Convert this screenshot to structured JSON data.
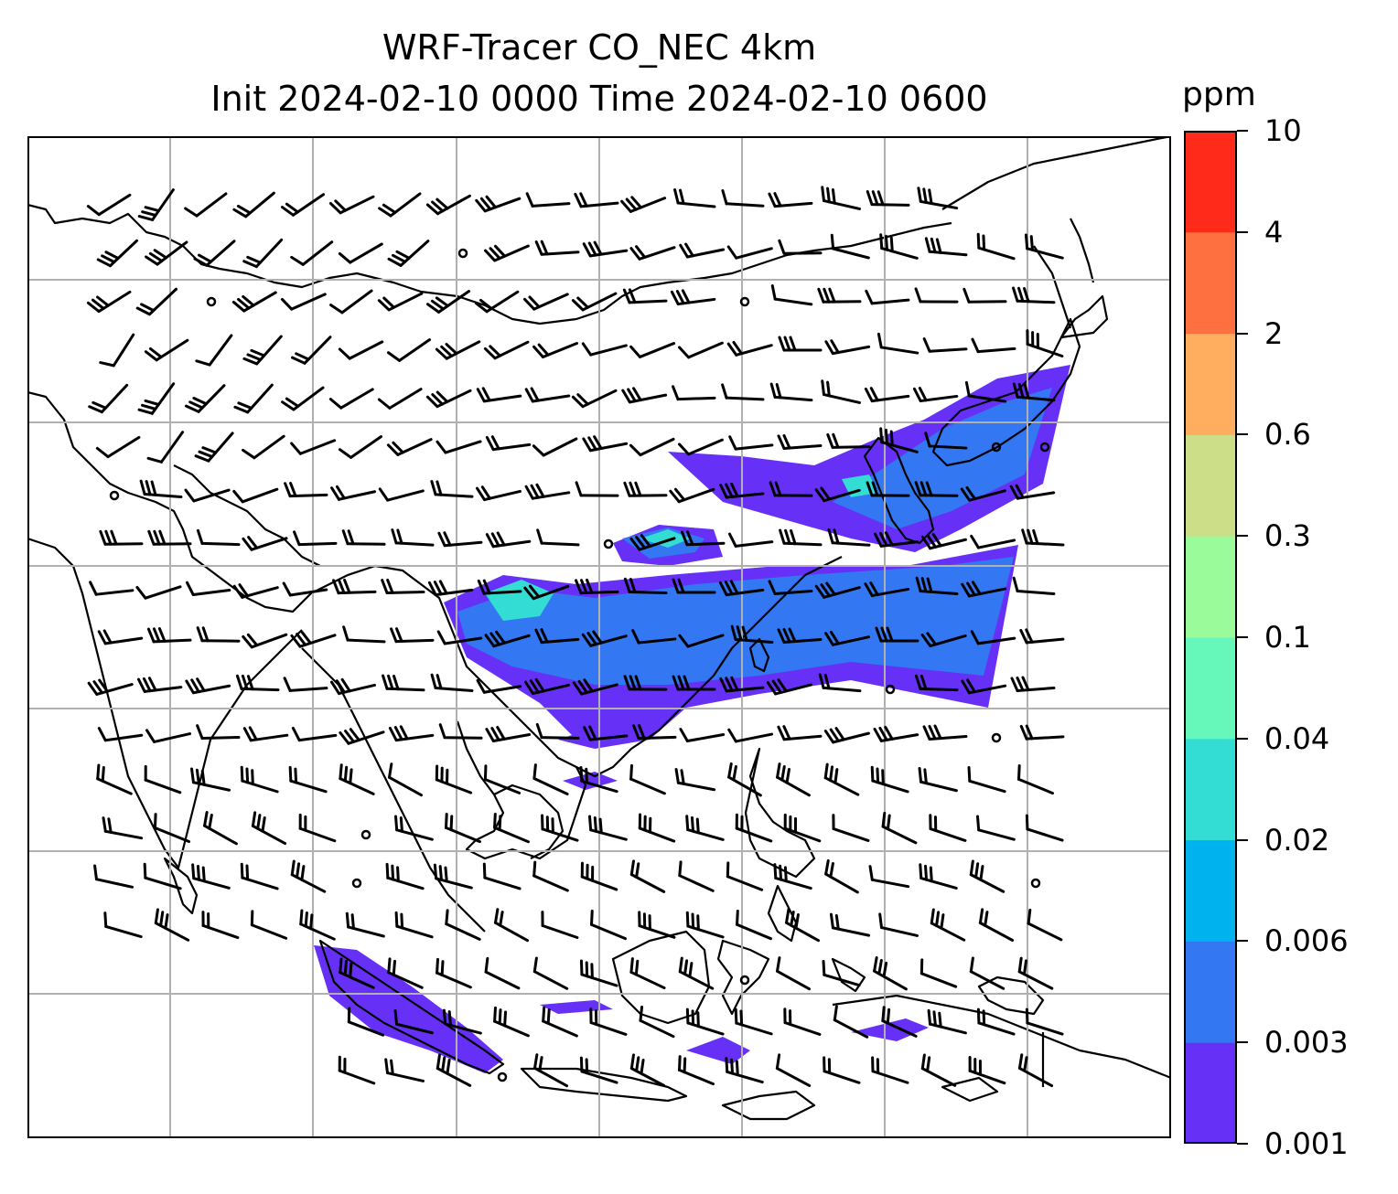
{
  "title": {
    "line1": "WRF-Tracer CO_NEC 4km",
    "line2": "Init 2024-02-10 0000 Time 2024-02-10 0600"
  },
  "colorbar": {
    "unit": "ppm",
    "levels": [
      "0.001",
      "0.003",
      "0.006",
      "0.02",
      "0.04",
      "0.1",
      "0.3",
      "0.6",
      "2",
      "4",
      "10"
    ],
    "colors": [
      "#6630f7",
      "#3377f2",
      "#00b2ee",
      "#33ddd4",
      "#66f8ba",
      "#99fb99",
      "#ccdf88",
      "#ffae60",
      "#ff7040",
      "#ff2a1a"
    ]
  },
  "map": {
    "gridlines": true,
    "coastline_color": "#000000",
    "tracer_plumes": [
      {
        "region": "central-southern-china-to-taiwan",
        "level": "0.003-0.04"
      },
      {
        "region": "korea-japan",
        "level": "0.003-0.02"
      },
      {
        "region": "sumatra-java",
        "level": "0.001-0.003"
      }
    ],
    "wind_barbs": true
  }
}
